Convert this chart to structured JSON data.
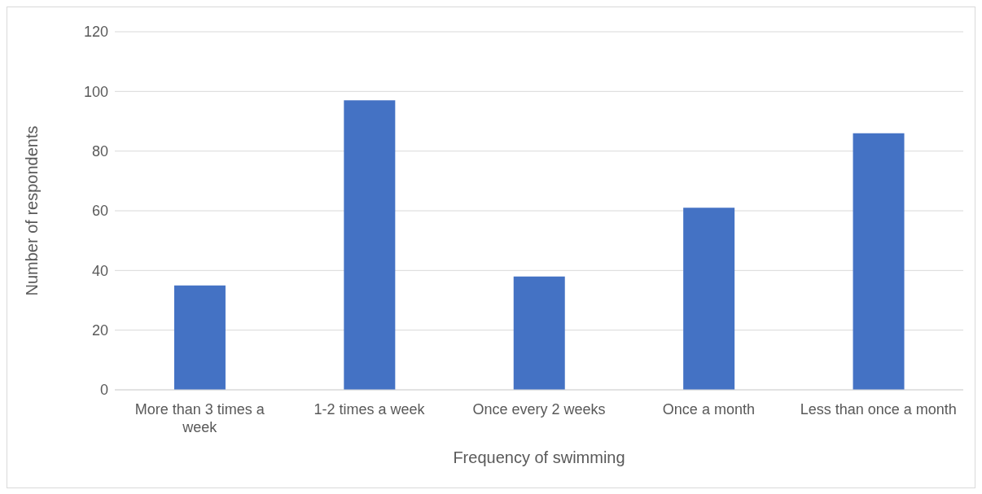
{
  "chart_data": {
    "type": "bar",
    "xlabel": "Frequency of swimming",
    "ylabel": "Number of respondents",
    "categories": [
      "More than 3 times a week",
      "1-2 times a week",
      "Once every 2 weeks",
      "Once a month",
      "Less than once a month"
    ],
    "values": [
      35,
      97,
      38,
      61,
      86
    ],
    "color": "#4472c4",
    "ylim": [
      0,
      120
    ],
    "yticks": [
      0,
      20,
      40,
      60,
      80,
      100,
      120
    ],
    "grid": "y"
  }
}
